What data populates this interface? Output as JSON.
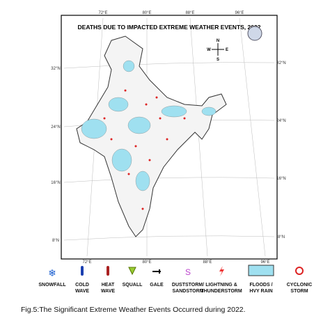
{
  "title": "DEATHS DUE TO IMPACTED EXTREME WEATHER EVENTS, 2022",
  "graticule": {
    "top": [
      "72°E",
      "80°E",
      "88°E",
      "96°E"
    ],
    "bottom": [
      "72°E",
      "80°E",
      "88°E",
      "96°E"
    ],
    "left": [
      "32°N",
      "24°N",
      "16°N",
      "8°N"
    ],
    "right": [
      "32°N",
      "24°N",
      "16°N",
      "8°N"
    ]
  },
  "compass": [
    "N",
    "E",
    "S",
    "W"
  ],
  "legend": [
    {
      "lines": [
        "SNOWFALL"
      ]
    },
    {
      "lines": [
        "COLD",
        "WAVE"
      ]
    },
    {
      "lines": [
        "HEAT",
        "WAVE"
      ]
    },
    {
      "lines": [
        "SQUALL"
      ]
    },
    {
      "lines": [
        "GALE"
      ]
    },
    {
      "lines": [
        "DUSTSTORM/",
        "SANDSTORM"
      ]
    },
    {
      "lines": [
        "LIGHTNING &",
        "THUNDERSTORM"
      ]
    },
    {
      "lines": [
        "FLOODS /",
        "HVY RAIN"
      ]
    },
    {
      "lines": [
        "CYCLONIC",
        "STORM"
      ]
    }
  ],
  "caption": "Fig.5:The Significant  Extreme Weather Events Occurred during 2022."
}
